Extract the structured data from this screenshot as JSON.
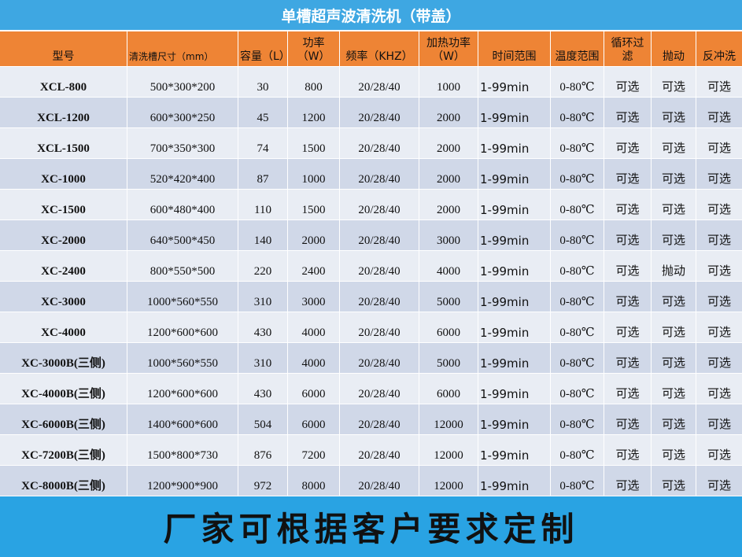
{
  "title": "单槽超声波清洗机（带盖）",
  "table": {
    "header": [
      "型号",
      "清洗槽尺寸（mm）",
      "容量（L）",
      "功率（W）",
      "频率（KHZ）",
      "加热功率（W）",
      "时间范围",
      "温度范围",
      "循环过滤",
      "抛动",
      "反冲洗"
    ],
    "rows": [
      [
        "XCL-800",
        "500*300*200",
        "30",
        "800",
        "20/28/40",
        "1000",
        "1-99min",
        "0-80℃",
        "可选",
        "可选",
        "可选"
      ],
      [
        "XCL-1200",
        "600*300*250",
        "45",
        "1200",
        "20/28/40",
        "2000",
        "1-99min",
        "0-80℃",
        "可选",
        "可选",
        "可选"
      ],
      [
        "XCL-1500",
        "700*350*300",
        "74",
        "1500",
        "20/28/40",
        "2000",
        "1-99min",
        "0-80℃",
        "可选",
        "可选",
        "可选"
      ],
      [
        "XC-1000",
        "520*420*400",
        "87",
        "1000",
        "20/28/40",
        "2000",
        "1-99min",
        "0-80℃",
        "可选",
        "可选",
        "可选"
      ],
      [
        "XC-1500",
        "600*480*400",
        "110",
        "1500",
        "20/28/40",
        "2000",
        "1-99min",
        "0-80℃",
        "可选",
        "可选",
        "可选"
      ],
      [
        "XC-2000",
        "640*500*450",
        "140",
        "2000",
        "20/28/40",
        "3000",
        "1-99min",
        "0-80℃",
        "可选",
        "可选",
        "可选"
      ],
      [
        "XC-2400",
        "800*550*500",
        "220",
        "2400",
        "20/28/40",
        "4000",
        "1-99min",
        "0-80℃",
        "可选",
        "抛动",
        "可选"
      ],
      [
        "XC-3000",
        "1000*560*550",
        "310",
        "3000",
        "20/28/40",
        "5000",
        "1-99min",
        "0-80℃",
        "可选",
        "可选",
        "可选"
      ],
      [
        "XC-4000",
        "1200*600*600",
        "430",
        "4000",
        "20/28/40",
        "6000",
        "1-99min",
        "0-80℃",
        "可选",
        "可选",
        "可选"
      ],
      [
        "XC-3000B(三侧)",
        "1000*560*550",
        "310",
        "4000",
        "20/28/40",
        "5000",
        "1-99min",
        "0-80℃",
        "可选",
        "可选",
        "可选"
      ],
      [
        "XC-4000B(三侧)",
        "1200*600*600",
        "430",
        "6000",
        "20/28/40",
        "6000",
        "1-99min",
        "0-80℃",
        "可选",
        "可选",
        "可选"
      ],
      [
        "XC-6000B(三侧)",
        "1400*600*600",
        "504",
        "6000",
        "20/28/40",
        "12000",
        "1-99min",
        "0-80℃",
        "可选",
        "可选",
        "可选"
      ],
      [
        "XC-7200B(三侧)",
        "1500*800*730",
        "876",
        "7200",
        "20/28/40",
        "12000",
        "1-99min",
        "0-80℃",
        "可选",
        "可选",
        "可选"
      ],
      [
        "XC-8000B(三侧)",
        "1200*900*900",
        "972",
        "8000",
        "20/28/40",
        "12000",
        "1-99min",
        "0-80℃",
        "可选",
        "可选",
        "可选"
      ]
    ]
  },
  "footer": "厂家可根据客户要求定制"
}
